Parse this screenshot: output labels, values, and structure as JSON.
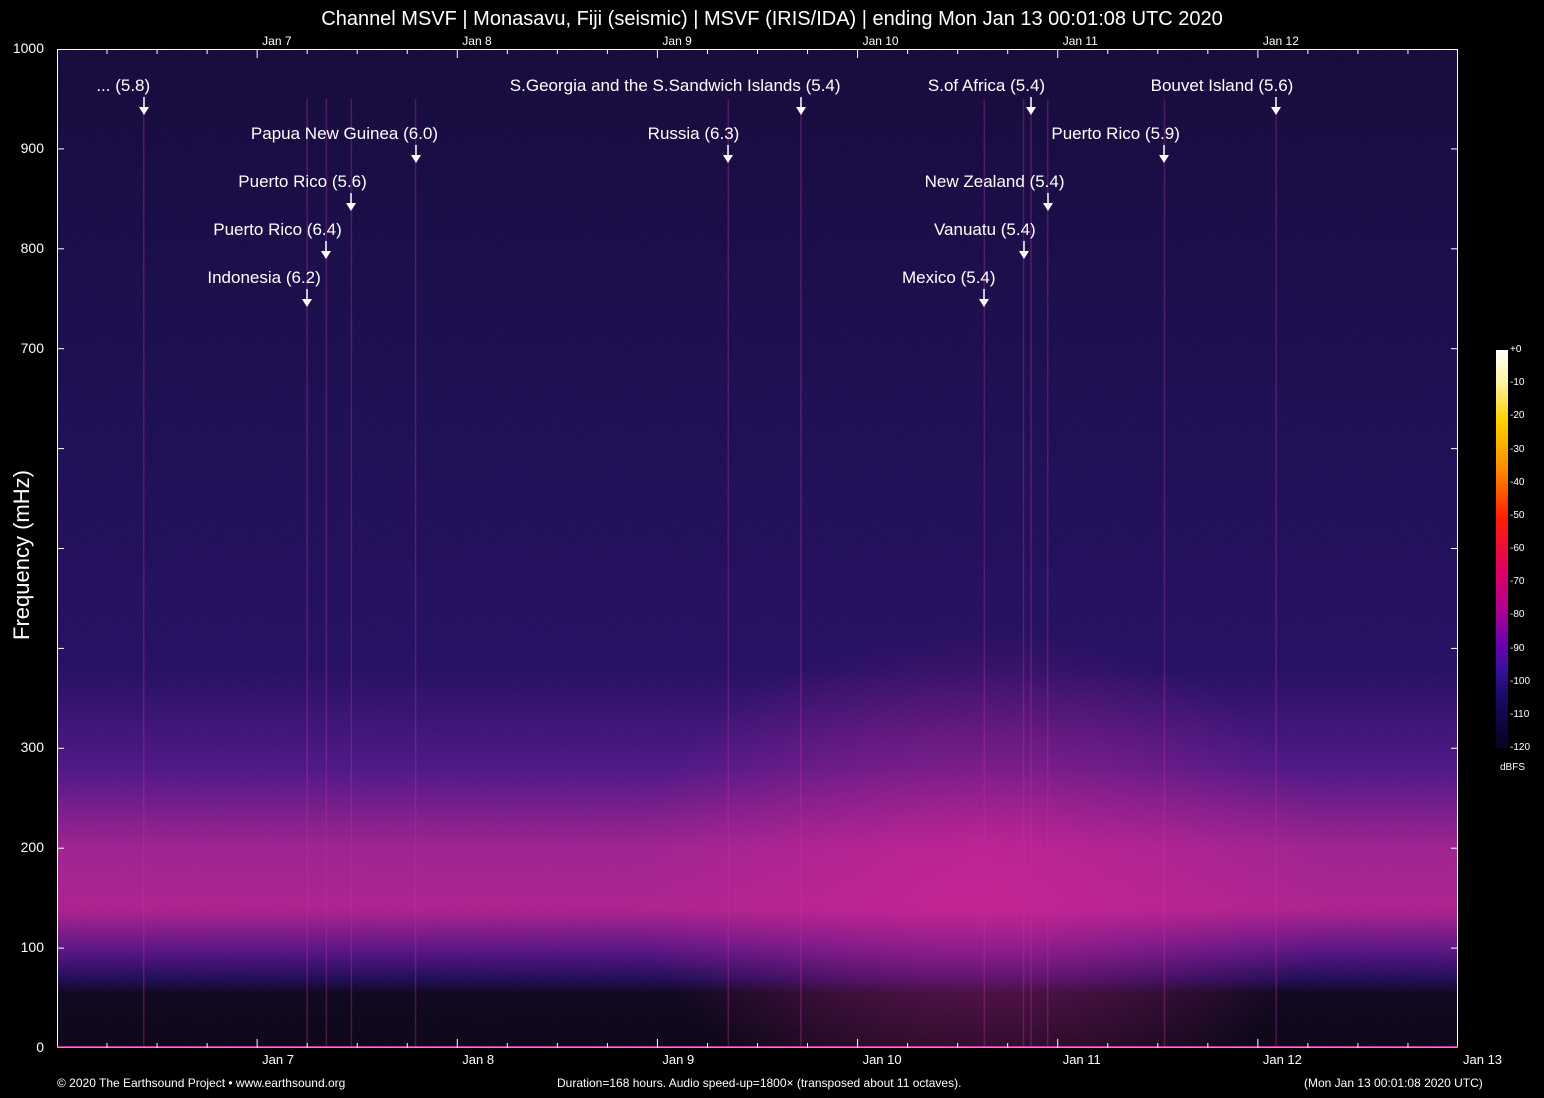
{
  "title": "Channel MSVF | Monasavu, Fiji (seismic) | MSVF (IRIS/IDA) | ending Mon Jan 13 00:01:08 UTC 2020",
  "footer": {
    "left": "© 2020 The Earthsound Project • www.earthsound.org",
    "center": "Duration=168 hours. Audio speed-up=1800× (transposed about 11 octaves).",
    "right": "(Mon Jan 13 00:01:08 2020 UTC)"
  },
  "colorbar": {
    "label": "dBFS",
    "ticks": [
      "+0",
      "-10",
      "-20",
      "-30",
      "-40",
      "-50",
      "-60",
      "-70",
      "-80",
      "-90",
      "-100",
      "-110",
      "-120"
    ]
  },
  "chart_data": {
    "type": "heatmap",
    "title": "Channel MSVF | Monasavu, Fiji (seismic) | MSVF (IRIS/IDA) | ending Mon Jan 13 00:01:08 UTC 2020",
    "ylabel": "Frequency (mHz)",
    "xlabel": "",
    "ylim": [
      0,
      1000
    ],
    "y_tick_labels": [
      "0",
      "100",
      "200",
      "300",
      "700",
      "800",
      "900",
      "1000"
    ],
    "y_tick_values": [
      0,
      100,
      200,
      300,
      700,
      800,
      900,
      1000
    ],
    "x_range_hours": [
      0,
      168
    ],
    "x_tick_labels_bottom": [
      "Jan 7",
      "Jan 8",
      "Jan 9",
      "Jan 10",
      "Jan 11",
      "Jan 12",
      "Jan 13"
    ],
    "x_tick_labels_top": [
      "Jan 7",
      "Jan 8",
      "Jan 9",
      "Jan 10",
      "Jan 11",
      "Jan 12"
    ],
    "x_tick_hours": [
      24,
      48,
      72,
      96,
      120,
      144,
      168
    ],
    "color_scale": {
      "unit": "dBFS",
      "min": -120,
      "max": 0
    },
    "colors": {
      "background": "#000000",
      "noise": "#120a45",
      "band": "#c8208a"
    },
    "microseism_band_mhz": [
      110,
      250
    ],
    "events": [
      {
        "label": "... (5.8)",
        "hour": 10.4
      },
      {
        "label": "Indonesia (6.2)",
        "hour": 30.0
      },
      {
        "label": "Puerto Rico (6.4)",
        "hour": 32.3
      },
      {
        "label": "Puerto Rico (5.6)",
        "hour": 35.3
      },
      {
        "label": "Papua New Guinea (6.0)",
        "hour": 43.0
      },
      {
        "label": "Russia (6.3)",
        "hour": 80.5
      },
      {
        "label": "S.Georgia and the S.Sandwich Islands (5.4)",
        "hour": 89.2
      },
      {
        "label": "Mexico (5.4)",
        "hour": 111.2
      },
      {
        "label": "Vanuatu (5.4)",
        "hour": 115.9
      },
      {
        "label": "S.of Africa (5.4)",
        "hour": 116.8
      },
      {
        "label": "New Zealand (5.4)",
        "hour": 118.8
      },
      {
        "label": "Puerto Rico (5.9)",
        "hour": 132.8
      },
      {
        "label": "Bouvet Island (5.6)",
        "hour": 146.2
      }
    ]
  }
}
